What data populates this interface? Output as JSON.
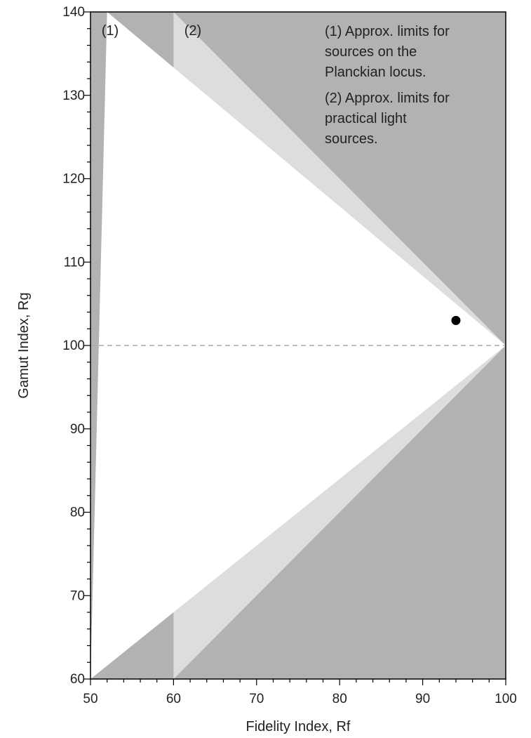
{
  "chart_data": {
    "type": "scatter",
    "title": "",
    "xlabel": "Fidelity Index, Rf",
    "ylabel": "Gamut Index, Rg",
    "xlim": [
      50,
      100
    ],
    "ylim": [
      60,
      140
    ],
    "xticks": [
      50,
      60,
      70,
      80,
      90,
      100
    ],
    "yticks": [
      60,
      70,
      80,
      90,
      100,
      110,
      120,
      130,
      140
    ],
    "grid": false,
    "reference_line": {
      "y": 100,
      "style": "dashed"
    },
    "points": [
      {
        "x": 94,
        "y": 103
      }
    ],
    "regions": [
      {
        "label": "(1)",
        "text": "Approx. limits for sources on the Planckian locus.",
        "vertices": [
          [
            52,
            140
          ],
          [
            100,
            100
          ],
          [
            50,
            60
          ]
        ],
        "color": "#dddddd"
      },
      {
        "label": "(2)",
        "text": "Approx. limits for practical light sources.",
        "vertices": [
          [
            60,
            140
          ],
          [
            100,
            100
          ],
          [
            60,
            60
          ]
        ],
        "color": "#b2b2b2"
      }
    ],
    "region_labels": [
      "(1)",
      "(2)"
    ],
    "legend_notes": [
      [
        "(1) Approx. limits for",
        "sources on the",
        "Planckian locus."
      ],
      [
        "(2) Approx. limits for",
        "practical light",
        "sources."
      ]
    ],
    "colors": {
      "outer": "#b2b2b2",
      "middle": "#dddddd",
      "inner": "#ffffff",
      "point": "#000000"
    }
  }
}
